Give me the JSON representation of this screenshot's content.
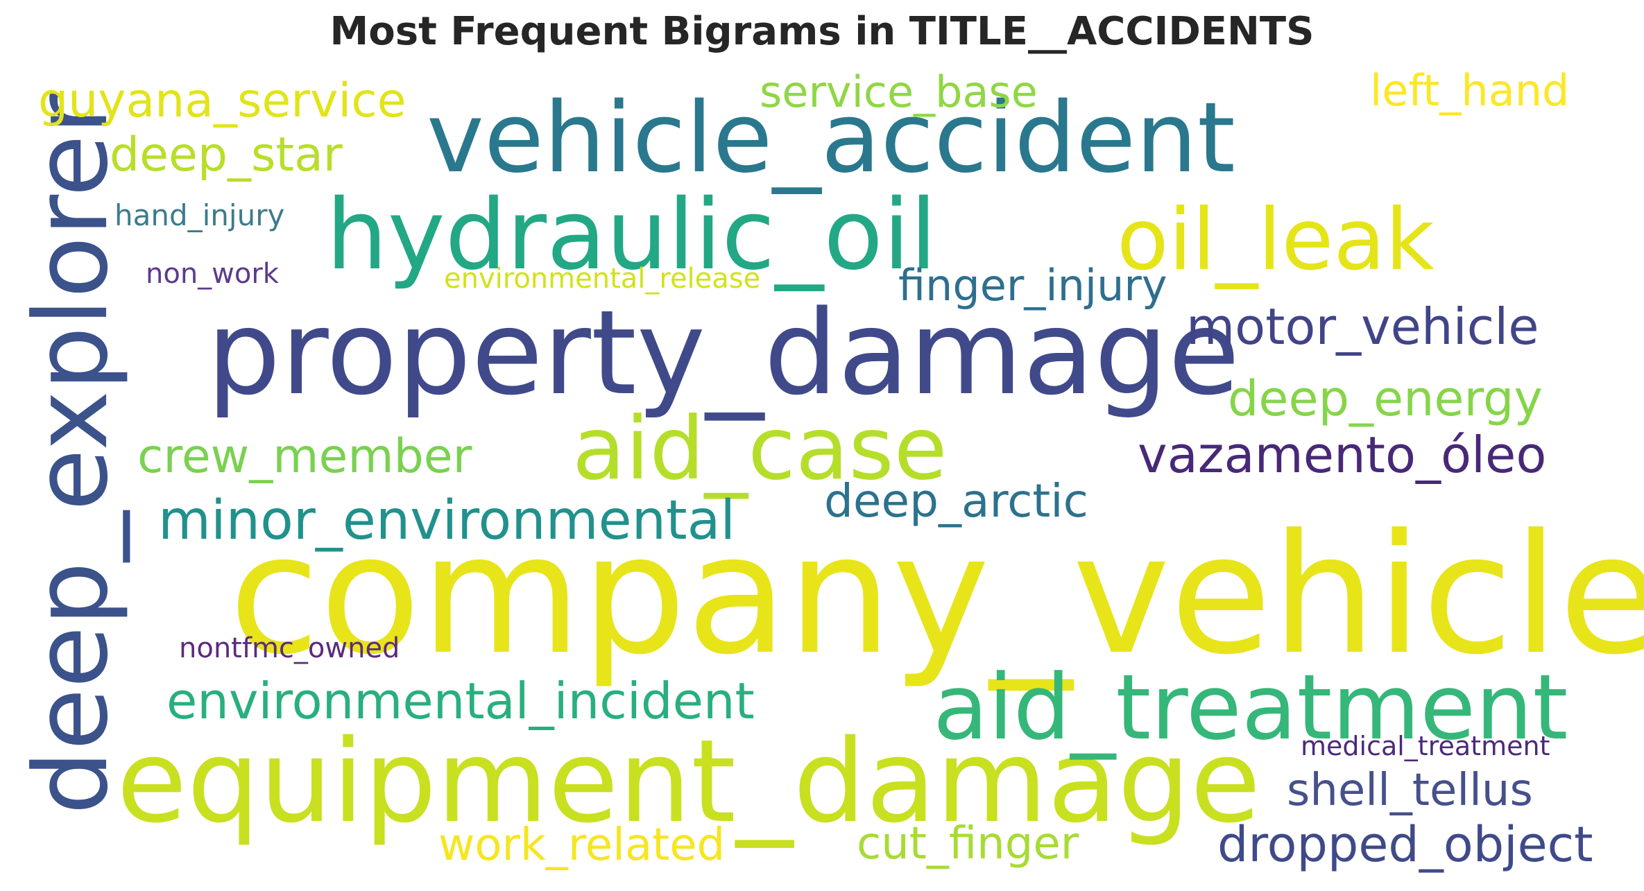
{
  "chart_data": {
    "type": "wordcloud",
    "title": "Most Frequent Bigrams in TITLE__ACCIDENTS",
    "colormap": "viridis",
    "background": "#ffffff",
    "words": [
      {
        "text": "company_vehicle",
        "weight": 1.0,
        "color": "#e8e41a",
        "orientation": "horizontal"
      },
      {
        "text": "property_damage",
        "weight": 0.72,
        "color": "#404a8a",
        "orientation": "horizontal"
      },
      {
        "text": "equipment_damage",
        "weight": 0.7,
        "color": "#c8e020",
        "orientation": "horizontal"
      },
      {
        "text": "deep_explorer",
        "weight": 0.62,
        "color": "#3b528b",
        "orientation": "vertical"
      },
      {
        "text": "vehicle_accident",
        "weight": 0.6,
        "color": "#2a788e",
        "orientation": "horizontal"
      },
      {
        "text": "hydraulic_oil",
        "weight": 0.6,
        "color": "#22a884",
        "orientation": "horizontal"
      },
      {
        "text": "aid_treatment",
        "weight": 0.56,
        "color": "#35b779",
        "orientation": "horizontal"
      },
      {
        "text": "aid_case",
        "weight": 0.54,
        "color": "#b5de2b",
        "orientation": "horizontal"
      },
      {
        "text": "oil_leak",
        "weight": 0.54,
        "color": "#e5e419",
        "orientation": "horizontal"
      },
      {
        "text": "minor_environmental",
        "weight": 0.34,
        "color": "#21918c",
        "orientation": "horizontal"
      },
      {
        "text": "environmental_incident",
        "weight": 0.32,
        "color": "#29af7f",
        "orientation": "horizontal"
      },
      {
        "text": "motor_vehicle",
        "weight": 0.31,
        "color": "#414487",
        "orientation": "horizontal"
      },
      {
        "text": "vazamento_óleo",
        "weight": 0.31,
        "color": "#482878",
        "orientation": "horizontal"
      },
      {
        "text": "dropped_object",
        "weight": 0.3,
        "color": "#3e4a89",
        "orientation": "horizontal"
      },
      {
        "text": "deep_energy",
        "weight": 0.3,
        "color": "#86d549",
        "orientation": "horizontal"
      },
      {
        "text": "crew_member",
        "weight": 0.29,
        "color": "#7ad151",
        "orientation": "horizontal"
      },
      {
        "text": "guyana_service",
        "weight": 0.29,
        "color": "#e2e418",
        "orientation": "horizontal"
      },
      {
        "text": "deep_star",
        "weight": 0.29,
        "color": "#b8de29",
        "orientation": "horizontal"
      },
      {
        "text": "deep_arctic",
        "weight": 0.28,
        "color": "#2c728e",
        "orientation": "horizontal"
      },
      {
        "text": "work_related",
        "weight": 0.28,
        "color": "#f6e620",
        "orientation": "horizontal"
      },
      {
        "text": "cut_finger",
        "weight": 0.28,
        "color": "#a8db34",
        "orientation": "horizontal"
      },
      {
        "text": "shell_tellus",
        "weight": 0.28,
        "color": "#46508c",
        "orientation": "horizontal"
      },
      {
        "text": "finger_injury",
        "weight": 0.27,
        "color": "#2e6f8e",
        "orientation": "horizontal"
      },
      {
        "text": "left_hand",
        "weight": 0.27,
        "color": "#fde725",
        "orientation": "horizontal"
      },
      {
        "text": "service_base",
        "weight": 0.27,
        "color": "#8fd744",
        "orientation": "horizontal"
      },
      {
        "text": "hand_injury",
        "weight": 0.18,
        "color": "#3b7c8c",
        "orientation": "horizontal"
      },
      {
        "text": "non_work",
        "weight": 0.17,
        "color": "#5b3a8c",
        "orientation": "horizontal"
      },
      {
        "text": "environmental_release",
        "weight": 0.17,
        "color": "#d2e21b",
        "orientation": "horizontal"
      },
      {
        "text": "nontfmc_owned",
        "weight": 0.17,
        "color": "#5c2a7e",
        "orientation": "horizontal"
      },
      {
        "text": "medical_treatment",
        "weight": 0.16,
        "color": "#4a2a7a",
        "orientation": "horizontal"
      }
    ]
  }
}
